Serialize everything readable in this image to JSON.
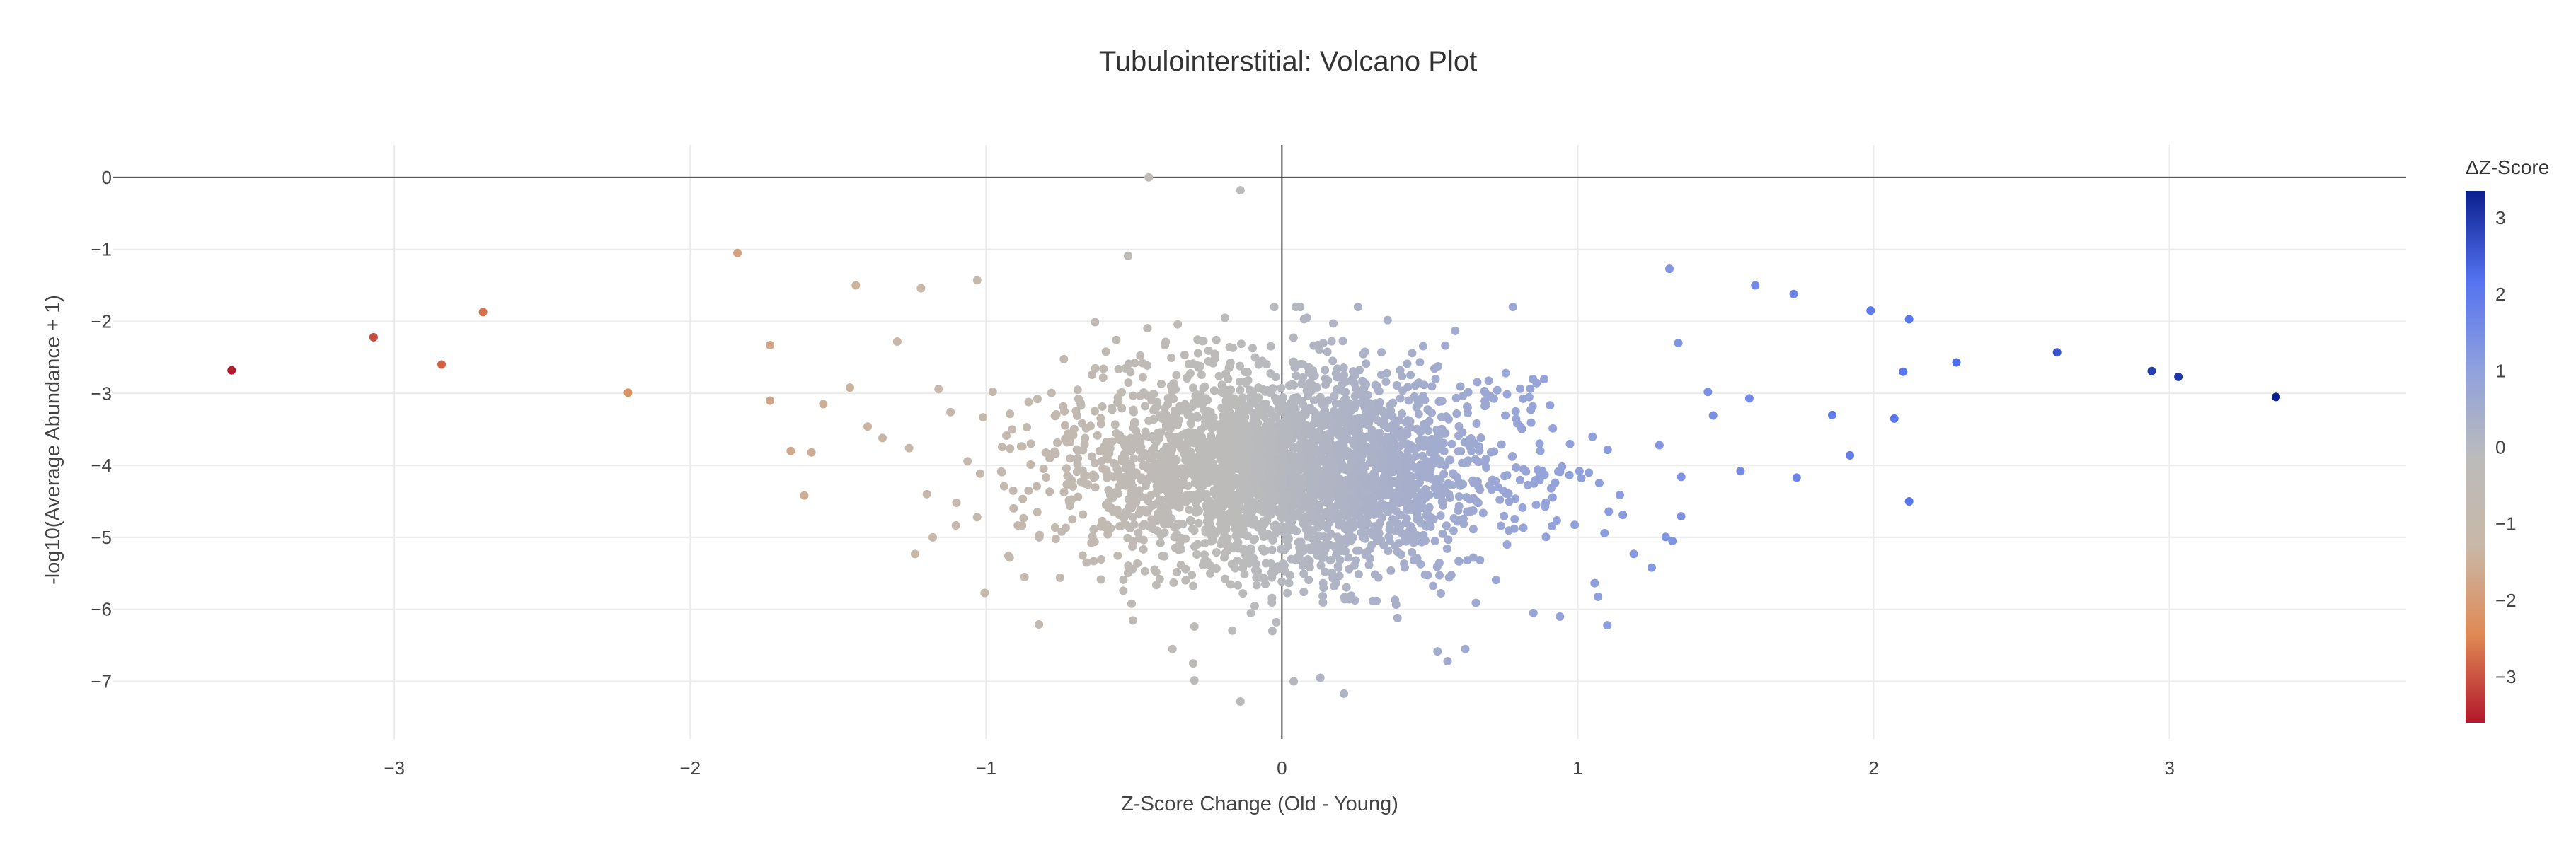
{
  "chart_data": {
    "type": "scatter",
    "title": "Tubulointerstitial: Volcano Plot",
    "xlabel": "Z-Score Change (Old - Young)",
    "ylabel": "-log10(Average Abundance + 1)",
    "xlim": [
      -3.95,
      3.8
    ],
    "ylim": [
      -7.8,
      0.45
    ],
    "x_ticks": [
      -3,
      -2,
      -1,
      0,
      1,
      2,
      3
    ],
    "x_tick_labels": [
      "−3",
      "−2",
      "−1",
      "0",
      "1",
      "2",
      "3"
    ],
    "y_ticks": [
      0,
      -1,
      -2,
      -3,
      -4,
      -5,
      -6,
      -7
    ],
    "y_tick_labels": [
      "0",
      "−1",
      "−2",
      "−3",
      "−4",
      "−5",
      "−6",
      "−7"
    ],
    "grid": true,
    "zero_lines": true,
    "colorbar": {
      "title": "ΔZ-Score",
      "range": [
        -3.6,
        3.35
      ],
      "ticks": [
        3,
        2,
        1,
        0,
        -1,
        -2,
        -3
      ],
      "tick_labels": [
        "3",
        "2",
        "1",
        "0",
        "−1",
        "−2",
        "−3"
      ],
      "colorscale": [
        "#b2182b",
        "#e08a55",
        "#c8b8a8",
        "#bbbbbb",
        "#8fa0dd",
        "#5372f0",
        "#0a1f8f"
      ]
    },
    "highlighted_points": [
      {
        "x": -3.55,
        "y": -2.68
      },
      {
        "x": -3.07,
        "y": -2.22
      },
      {
        "x": -2.84,
        "y": -2.6
      },
      {
        "x": -2.7,
        "y": -1.87
      },
      {
        "x": -2.21,
        "y": -2.99
      },
      {
        "x": -1.84,
        "y": -1.05
      },
      {
        "x": -1.73,
        "y": -2.33
      },
      {
        "x": -1.73,
        "y": -3.1
      },
      {
        "x": -1.66,
        "y": -3.8
      },
      {
        "x": -1.59,
        "y": -3.82
      },
      {
        "x": -1.55,
        "y": -3.15
      },
      {
        "x": -1.46,
        "y": -2.92
      },
      {
        "x": -1.44,
        "y": -1.5
      },
      {
        "x": -1.4,
        "y": -3.46
      },
      {
        "x": -1.35,
        "y": -3.62
      },
      {
        "x": -1.3,
        "y": -2.28
      },
      {
        "x": -1.26,
        "y": -3.76
      },
      {
        "x": -1.24,
        "y": -5.23
      },
      {
        "x": -1.22,
        "y": -1.54
      },
      {
        "x": -1.2,
        "y": -4.4
      },
      {
        "x": -1.18,
        "y": -5.0
      },
      {
        "x": -1.12,
        "y": -3.26
      },
      {
        "x": -1.1,
        "y": -4.52
      },
      {
        "x": -1.03,
        "y": -1.43
      },
      {
        "x": -1.03,
        "y": -4.72
      },
      {
        "x": -0.92,
        "y": -5.28
      },
      {
        "x": -0.87,
        "y": -5.55
      },
      {
        "x": -0.82,
        "y": -5.0
      },
      {
        "x": -0.75,
        "y": -5.56
      },
      {
        "x": -0.66,
        "y": -5.35
      },
      {
        "x": -0.52,
        "y": -1.09
      },
      {
        "x": -0.45,
        "y": 0.0
      },
      {
        "x": -0.14,
        "y": -0.18
      },
      {
        "x": -0.37,
        "y": -6.55
      },
      {
        "x": -0.3,
        "y": -6.75
      },
      {
        "x": -0.14,
        "y": -7.28
      },
      {
        "x": 0.04,
        "y": -7.0
      },
      {
        "x": 0.13,
        "y": -6.95
      },
      {
        "x": 0.21,
        "y": -7.17
      },
      {
        "x": 0.56,
        "y": -6.72
      },
      {
        "x": 0.62,
        "y": -6.55
      },
      {
        "x": 0.85,
        "y": -6.05
      },
      {
        "x": 0.94,
        "y": -6.1
      },
      {
        "x": 1.1,
        "y": -6.22
      },
      {
        "x": 1.25,
        "y": -5.42
      },
      {
        "x": 1.32,
        "y": -5.05
      },
      {
        "x": 1.31,
        "y": -1.27
      },
      {
        "x": 1.34,
        "y": -2.3
      },
      {
        "x": 1.35,
        "y": -4.16
      },
      {
        "x": 1.44,
        "y": -2.98
      },
      {
        "x": 1.55,
        "y": -4.08
      },
      {
        "x": 1.6,
        "y": -1.5
      },
      {
        "x": 1.58,
        "y": -3.07
      },
      {
        "x": 1.73,
        "y": -1.62
      },
      {
        "x": 1.74,
        "y": -4.17
      },
      {
        "x": 1.86,
        "y": -3.3
      },
      {
        "x": 1.92,
        "y": -3.86
      },
      {
        "x": 1.99,
        "y": -1.85
      },
      {
        "x": 2.07,
        "y": -3.35
      },
      {
        "x": 2.1,
        "y": -2.7
      },
      {
        "x": 2.12,
        "y": -1.97
      },
      {
        "x": 2.12,
        "y": -4.5
      },
      {
        "x": 2.28,
        "y": -2.57
      },
      {
        "x": 2.62,
        "y": -2.43
      },
      {
        "x": 2.94,
        "y": -2.69
      },
      {
        "x": 3.03,
        "y": -2.77
      },
      {
        "x": 3.36,
        "y": -3.05
      }
    ],
    "bulk_cluster": {
      "count": 3200,
      "center_x": 0.0,
      "center_y": -4.05,
      "sd_x": 0.33,
      "sd_y": 0.7,
      "y_range": [
        -7.0,
        -1.8
      ]
    }
  }
}
